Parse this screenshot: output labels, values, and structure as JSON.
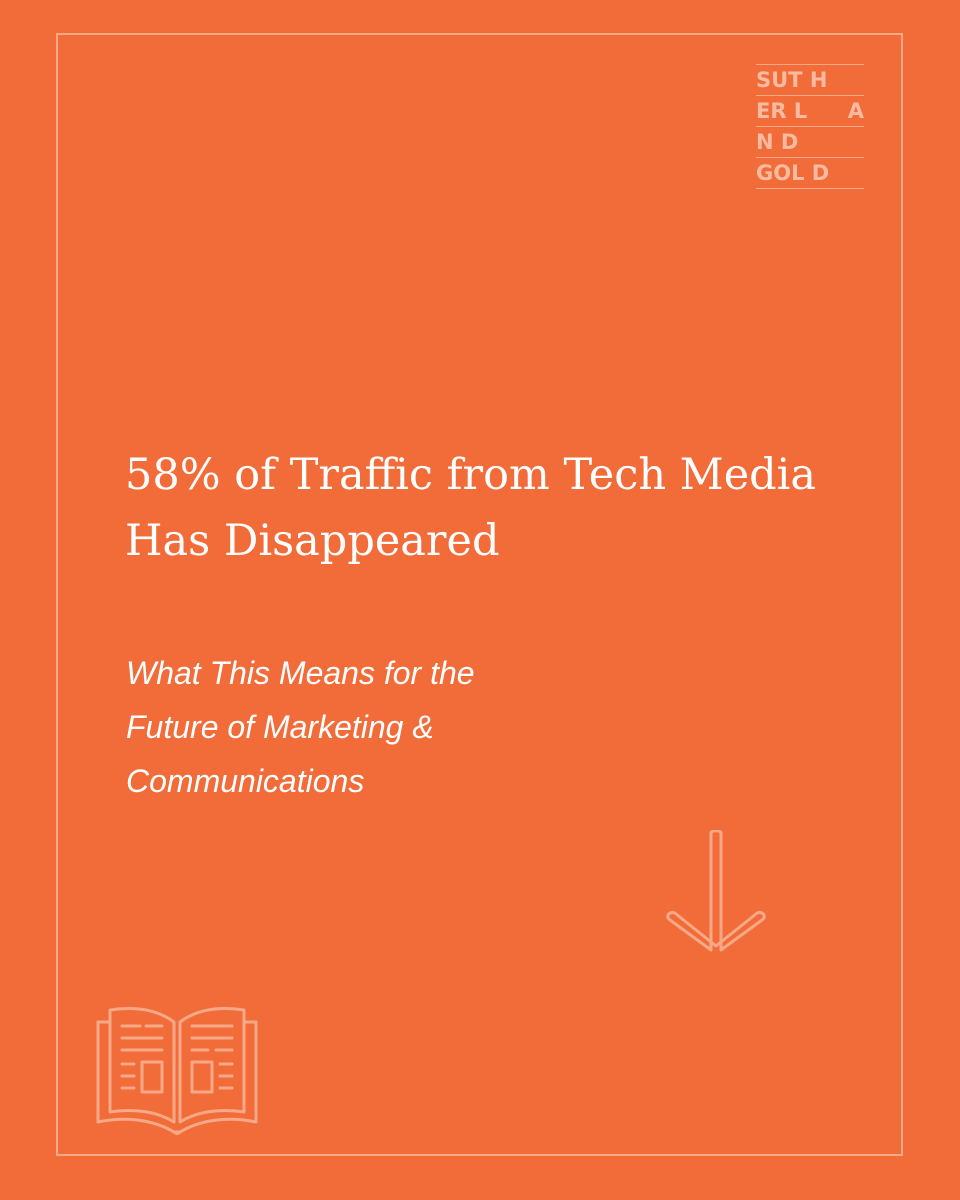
{
  "colors": {
    "background": "#F26C3A",
    "accent_line": "#F7A887",
    "text": "#FFFFFF",
    "logo_text": "#F9BBA0"
  },
  "logo": {
    "rows": [
      {
        "left": "SUT",
        "mid": "H",
        "right": ""
      },
      {
        "left": "ER",
        "mid": "L",
        "right": "A"
      },
      {
        "left": "N",
        "mid": "D",
        "right": ""
      },
      {
        "left": "GOL",
        "mid": "D",
        "right": ""
      }
    ]
  },
  "headline": {
    "line1": "58% of Traffic from Tech Media",
    "line2": "Has Disappeared"
  },
  "subhead": {
    "line1": "What This Means for the",
    "line2": "Future of Marketing &",
    "line3": "Communications"
  },
  "icons": {
    "arrow": "arrow-down-icon",
    "book": "open-book-icon"
  }
}
